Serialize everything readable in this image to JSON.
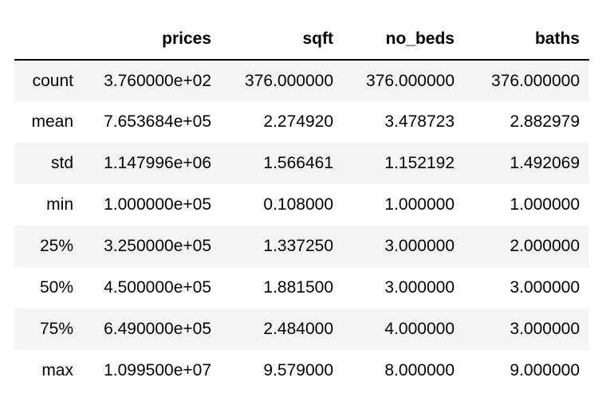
{
  "table": {
    "columns": [
      "",
      "prices",
      "sqft",
      "no_beds",
      "baths"
    ],
    "rows": [
      {
        "index": "count",
        "prices": "3.760000e+02",
        "sqft": "376.000000",
        "no_beds": "376.000000",
        "baths": "376.000000"
      },
      {
        "index": "mean",
        "prices": "7.653684e+05",
        "sqft": "2.274920",
        "no_beds": "3.478723",
        "baths": "2.882979"
      },
      {
        "index": "std",
        "prices": "1.147996e+06",
        "sqft": "1.566461",
        "no_beds": "1.152192",
        "baths": "1.492069"
      },
      {
        "index": "min",
        "prices": "1.000000e+05",
        "sqft": "0.108000",
        "no_beds": "1.000000",
        "baths": "1.000000"
      },
      {
        "index": "25%",
        "prices": "3.250000e+05",
        "sqft": "1.337250",
        "no_beds": "3.000000",
        "baths": "2.000000"
      },
      {
        "index": "50%",
        "prices": "4.500000e+05",
        "sqft": "1.881500",
        "no_beds": "3.000000",
        "baths": "3.000000"
      },
      {
        "index": "75%",
        "prices": "6.490000e+05",
        "sqft": "2.484000",
        "no_beds": "4.000000",
        "baths": "3.000000"
      },
      {
        "index": "max",
        "prices": "1.099500e+07",
        "sqft": "9.579000",
        "no_beds": "8.000000",
        "baths": "9.000000"
      }
    ]
  },
  "colors": {
    "stripe": "#f5f5f5",
    "background": "#ffffff",
    "header_rule": "#000000",
    "text": "#000000"
  }
}
